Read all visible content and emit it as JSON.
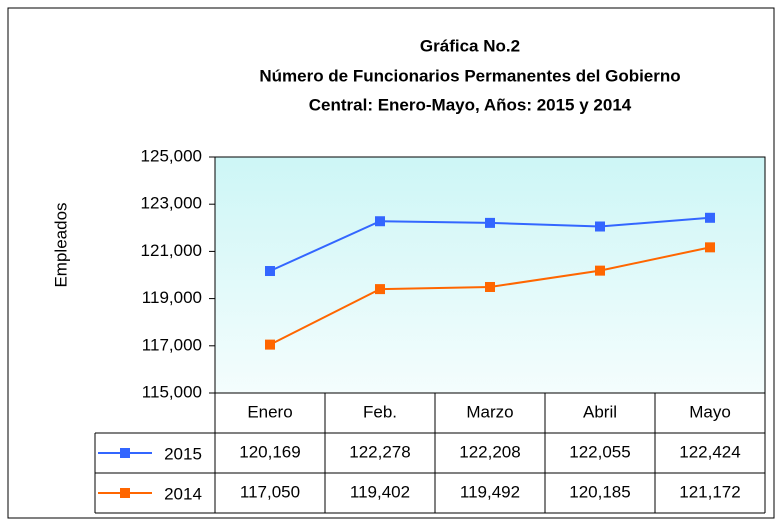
{
  "chart_data": {
    "type": "line",
    "title": [
      "Gráfica No.2",
      "Número de Funcionarios Permanentes del Gobierno",
      "Central: Enero-Mayo, Años: 2015 y 2014"
    ],
    "y_label": "Empleados",
    "categories": [
      "Enero",
      "Feb.",
      "Marzo",
      "Abril",
      "Mayo"
    ],
    "series": [
      {
        "name": "2015",
        "color": "#3366ff",
        "values": [
          120169,
          122278,
          122208,
          122055,
          122424
        ],
        "value_labels": [
          "120,169",
          "122,278",
          "122,208",
          "122,055",
          "122,424"
        ]
      },
      {
        "name": "2014",
        "color": "#ff6600",
        "values": [
          117050,
          119402,
          119492,
          120185,
          121172
        ],
        "value_labels": [
          "117,050",
          "119,402",
          "119,492",
          "120,185",
          "121,172"
        ]
      }
    ],
    "ylim": [
      115000,
      125000
    ],
    "yticks": [
      {
        "value": 115000,
        "label": "115,000"
      },
      {
        "value": 117000,
        "label": "117,000"
      },
      {
        "value": 119000,
        "label": "119,000"
      },
      {
        "value": 121000,
        "label": "121,000"
      },
      {
        "value": 123000,
        "label": "123,000"
      },
      {
        "value": 125000,
        "label": "125,000"
      }
    ]
  }
}
